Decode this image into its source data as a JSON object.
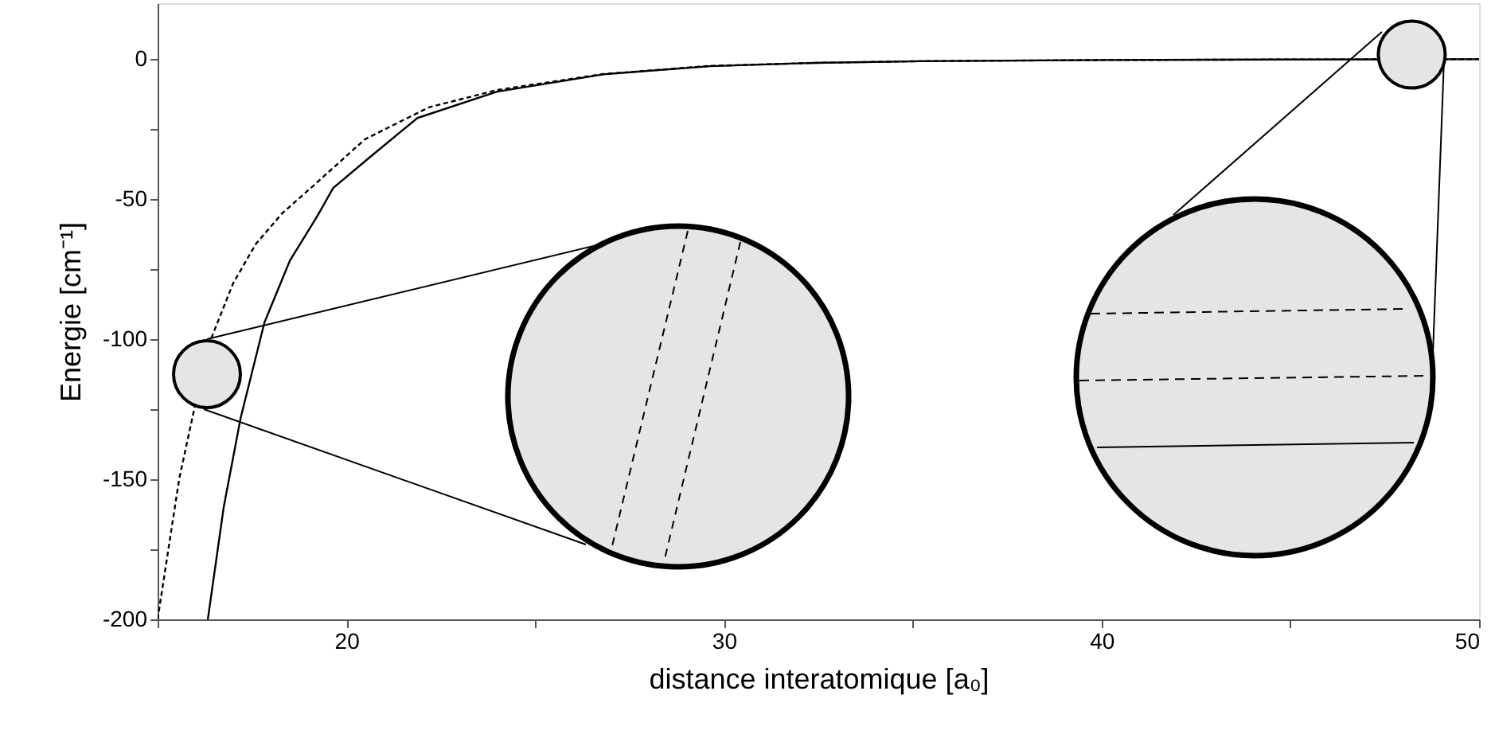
{
  "chart_data": {
    "type": "line",
    "xlabel": "distance interatomique [a₀]",
    "ylabel": "Energie [cm⁻¹]",
    "xlim": [
      15,
      50
    ],
    "ylim": [
      -200,
      20
    ],
    "xticks": [
      {
        "value": 15,
        "label": null
      },
      20,
      {
        "value": 25,
        "label": null
      },
      30,
      {
        "value": 35,
        "label": null
      },
      40,
      {
        "value": 45,
        "label": null
      },
      50
    ],
    "yticks": [
      -200,
      {
        "value": -175,
        "label": null
      },
      -150,
      {
        "value": -125,
        "label": null
      },
      -100,
      {
        "value": -75,
        "label": null
      },
      -50,
      {
        "value": -25,
        "label": null
      },
      0
    ],
    "grid": false,
    "marker": "none",
    "series": [
      {
        "color": "#000000",
        "line_style": "dotted",
        "x": [
          15,
          15.57,
          16.0,
          16.41,
          17.0,
          17.6,
          18.3,
          19.09,
          20.49,
          22.18,
          23.99,
          26.81,
          29.63,
          32.41,
          35.23,
          40,
          45,
          50
        ],
        "values": [
          -200,
          -150,
          -123,
          -100,
          -80,
          -66,
          -55,
          -45.6,
          -28.6,
          -17.2,
          -11.0,
          -5.3,
          -2.4,
          -1.3,
          -0.7,
          -0.3,
          -0.1,
          0
        ]
      },
      {
        "color": "#000000",
        "line_style": "solid",
        "x": [
          16.33,
          16.75,
          17.2,
          17.83,
          18.5,
          19.23,
          19.65,
          20.62,
          21.88,
          23.99,
          26.81,
          29.63,
          32.41,
          35.23,
          40,
          45,
          50
        ],
        "values": [
          -200,
          -160,
          -128,
          -94,
          -72,
          -56,
          -46,
          -35,
          -21,
          -11.6,
          -5.4,
          -2.5,
          -1.3,
          -0.7,
          -0.3,
          -0.1,
          0
        ]
      }
    ]
  }
}
